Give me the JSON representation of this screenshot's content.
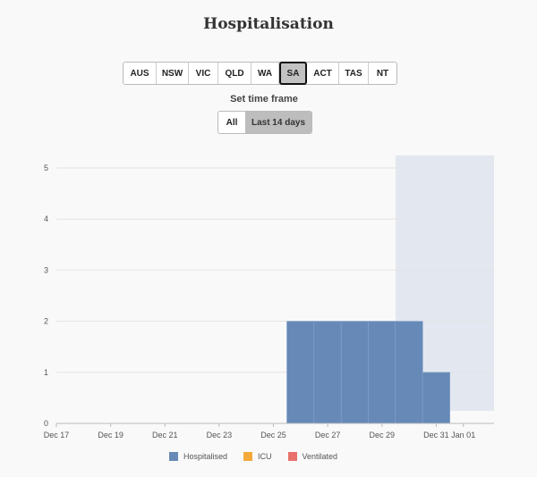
{
  "page": {
    "title": "Hospitalisation"
  },
  "regions": [
    {
      "label": "AUS",
      "active": false
    },
    {
      "label": "NSW",
      "active": false
    },
    {
      "label": "VIC",
      "active": false
    },
    {
      "label": "QLD",
      "active": false
    },
    {
      "label": "WA",
      "active": false
    },
    {
      "label": "SA",
      "active": true
    },
    {
      "label": "ACT",
      "active": false
    },
    {
      "label": "TAS",
      "active": false
    },
    {
      "label": "NT",
      "active": false
    }
  ],
  "timeframe": {
    "label": "Set time frame",
    "options": [
      {
        "label": "All",
        "active": false
      },
      {
        "label": "Last 14 days",
        "active": true
      }
    ]
  },
  "colors": {
    "hospitalised": "#6689b7",
    "icu": "#f5a93b",
    "ventilated": "#e8716b",
    "highlight": "#e3e7f0"
  },
  "chart_data": {
    "type": "bar",
    "title": "",
    "xlabel": "",
    "ylabel": "",
    "ylim": [
      0,
      5
    ],
    "yticks": [
      0,
      1,
      2,
      3,
      4,
      5
    ],
    "x_range": [
      "Dec 17",
      "Jan 02"
    ],
    "xticks": [
      "Dec 17",
      "Dec 19",
      "Dec 21",
      "Dec 23",
      "Dec 25",
      "Dec 27",
      "Dec 29",
      "Dec 31",
      "Jan 01"
    ],
    "grid": true,
    "legend_position": "bottom",
    "highlight_range": [
      "Dec 30",
      "Jan 02"
    ],
    "series": [
      {
        "name": "Hospitalised",
        "x": [
          "Dec 26",
          "Dec 27",
          "Dec 28",
          "Dec 29",
          "Dec 30",
          "Dec 31"
        ],
        "values": [
          2,
          2,
          2,
          2,
          2,
          1
        ]
      },
      {
        "name": "ICU",
        "x": [],
        "values": []
      },
      {
        "name": "Ventilated",
        "x": [],
        "values": []
      }
    ]
  }
}
